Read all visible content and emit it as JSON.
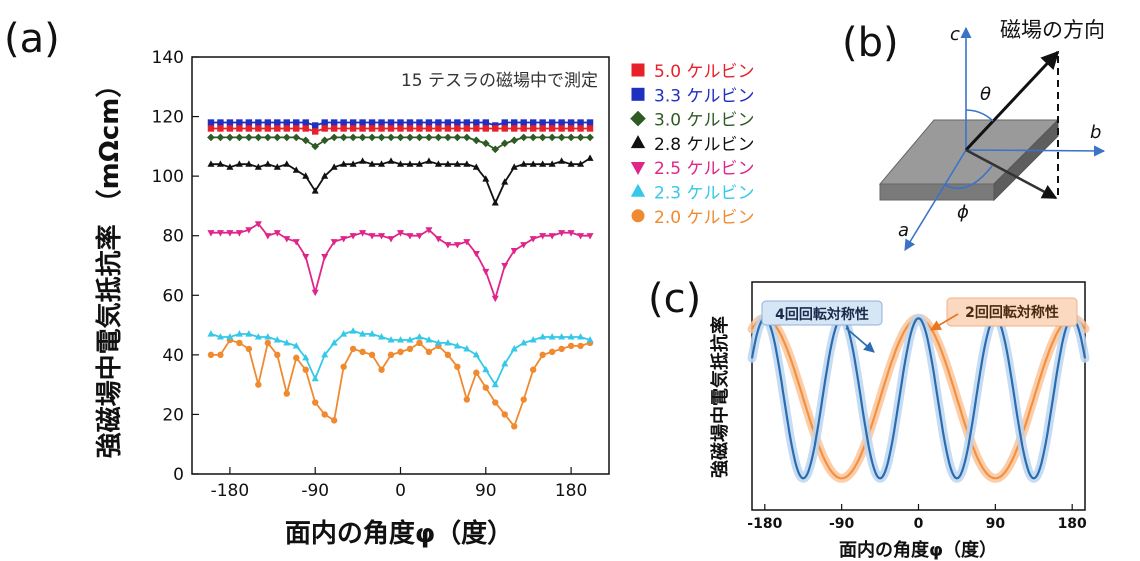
{
  "panels": {
    "a": {
      "label": "(a)"
    },
    "b": {
      "label": "(b)"
    },
    "c": {
      "label": "(c)"
    }
  },
  "chart_data": [
    {
      "type": "line",
      "panel": "a",
      "annotation": "15 テスラの磁場中で測定",
      "xlabel": "面内の角度φ（度）",
      "ylabel": "強磁場中電気抵抗率 （mΩcm）",
      "xlim": [
        -220,
        220
      ],
      "ylim": [
        0,
        140
      ],
      "xticks": [
        "-180",
        "-90",
        "0",
        "90",
        "180"
      ],
      "yticks": [
        "0",
        "20",
        "40",
        "60",
        "80",
        "100",
        "120",
        "140"
      ],
      "grid": false,
      "legend_position": "right, outside plot",
      "series": [
        {
          "name": "5.0 ケルビン",
          "color": "#e8202a",
          "marker": "square",
          "x": [
            -200,
            -190,
            -180,
            -170,
            -160,
            -150,
            -140,
            -130,
            -120,
            -110,
            -100,
            -90,
            -80,
            -70,
            -60,
            -50,
            -40,
            -30,
            -20,
            -10,
            0,
            10,
            20,
            30,
            40,
            50,
            60,
            70,
            80,
            90,
            100,
            110,
            120,
            130,
            140,
            150,
            160,
            170,
            180,
            190,
            200
          ],
          "y": [
            116,
            116,
            116,
            116,
            116,
            116,
            116,
            116,
            116,
            116,
            116,
            115,
            116,
            116,
            116,
            116,
            116,
            116,
            116,
            116,
            116,
            116,
            116,
            116,
            116,
            116,
            116,
            116,
            116,
            116,
            116,
            116,
            116,
            116,
            116,
            116,
            116,
            116,
            116,
            116,
            116
          ]
        },
        {
          "name": "3.3 ケルビン",
          "color": "#1f2fbf",
          "marker": "square",
          "x": [
            -200,
            -190,
            -180,
            -170,
            -160,
            -150,
            -140,
            -130,
            -120,
            -110,
            -100,
            -90,
            -80,
            -70,
            -60,
            -50,
            -40,
            -30,
            -20,
            -10,
            0,
            10,
            20,
            30,
            40,
            50,
            60,
            70,
            80,
            90,
            100,
            110,
            120,
            130,
            140,
            150,
            160,
            170,
            180,
            190,
            200
          ],
          "y": [
            118,
            118,
            118,
            118,
            118,
            118,
            118,
            118,
            118,
            118,
            118,
            117,
            118,
            118,
            118,
            118,
            118,
            118,
            118,
            118,
            118,
            118,
            118,
            118,
            118,
            118,
            118,
            118,
            118,
            118,
            117,
            118,
            118,
            118,
            118,
            118,
            118,
            118,
            118,
            118,
            118
          ]
        },
        {
          "name": "3.0 ケルビン",
          "color": "#2f5a24",
          "marker": "diamond",
          "x": [
            -200,
            -190,
            -180,
            -170,
            -160,
            -150,
            -140,
            -130,
            -120,
            -110,
            -100,
            -90,
            -80,
            -70,
            -60,
            -50,
            -40,
            -30,
            -20,
            -10,
            0,
            10,
            20,
            30,
            40,
            50,
            60,
            70,
            80,
            90,
            100,
            110,
            120,
            130,
            140,
            150,
            160,
            170,
            180,
            190,
            200
          ],
          "y": [
            113,
            113,
            113,
            113,
            113,
            113,
            113,
            113,
            113,
            113,
            112,
            110,
            112,
            113,
            113,
            113,
            113,
            113,
            113,
            113,
            113,
            113,
            113,
            113,
            113,
            113,
            113,
            113,
            112,
            111,
            109,
            111,
            112,
            113,
            113,
            113,
            113,
            113,
            113,
            113,
            113
          ]
        },
        {
          "name": "2.8 ケルビン",
          "color": "#111111",
          "marker": "triangle-up",
          "x": [
            -200,
            -190,
            -180,
            -170,
            -160,
            -150,
            -140,
            -130,
            -120,
            -110,
            -100,
            -90,
            -80,
            -70,
            -60,
            -50,
            -40,
            -30,
            -20,
            -10,
            0,
            10,
            20,
            30,
            40,
            50,
            60,
            70,
            80,
            90,
            100,
            110,
            120,
            130,
            140,
            150,
            160,
            170,
            180,
            190,
            200
          ],
          "y": [
            104,
            104,
            103,
            104,
            104,
            103,
            104,
            103,
            104,
            102,
            100,
            95,
            100,
            103,
            104,
            104,
            105,
            104,
            104,
            105,
            104,
            104,
            104,
            105,
            104,
            104,
            104,
            104,
            103,
            99,
            91,
            98,
            103,
            104,
            104,
            104,
            104,
            105,
            104,
            104,
            106
          ]
        },
        {
          "name": "2.5 ケルビン",
          "color": "#e0248a",
          "marker": "triangle-down",
          "x": [
            -200,
            -190,
            -180,
            -170,
            -160,
            -150,
            -140,
            -130,
            -120,
            -110,
            -100,
            -90,
            -80,
            -70,
            -60,
            -50,
            -40,
            -30,
            -20,
            -10,
            0,
            10,
            20,
            30,
            40,
            50,
            60,
            70,
            80,
            90,
            100,
            110,
            120,
            130,
            140,
            150,
            160,
            170,
            180,
            190,
            200
          ],
          "y": [
            81,
            81,
            81,
            81,
            82,
            84,
            80,
            81,
            79,
            78,
            73,
            61,
            73,
            78,
            79,
            80,
            81,
            80,
            80,
            79,
            81,
            80,
            80,
            82,
            79,
            77,
            77,
            78,
            74,
            68,
            59,
            70,
            75,
            77,
            79,
            80,
            80,
            81,
            81,
            80,
            80
          ]
        },
        {
          "name": "2.3 ケルビン",
          "color": "#35c8e8",
          "marker": "triangle-up",
          "x": [
            -200,
            -190,
            -180,
            -170,
            -160,
            -150,
            -140,
            -130,
            -120,
            -110,
            -100,
            -90,
            -80,
            -70,
            -60,
            -50,
            -40,
            -30,
            -20,
            -10,
            0,
            10,
            20,
            30,
            40,
            50,
            60,
            70,
            80,
            90,
            100,
            110,
            120,
            130,
            140,
            150,
            160,
            170,
            180,
            190,
            200
          ],
          "y": [
            47,
            46,
            46,
            47,
            47,
            46,
            46,
            45,
            44,
            43,
            39,
            32,
            40,
            44,
            47,
            48,
            47,
            47,
            46,
            45,
            45,
            45,
            46,
            45,
            44,
            44,
            43,
            42,
            40,
            35,
            30,
            37,
            42,
            44,
            45,
            46,
            46,
            46,
            46,
            46,
            45
          ]
        },
        {
          "name": "2.0 ケルビン",
          "color": "#f08a30",
          "marker": "circle",
          "x": [
            -200,
            -190,
            -180,
            -170,
            -160,
            -150,
            -140,
            -130,
            -120,
            -110,
            -100,
            -90,
            -80,
            -70,
            -60,
            -50,
            -40,
            -30,
            -20,
            -10,
            0,
            10,
            20,
            30,
            40,
            50,
            60,
            70,
            80,
            90,
            100,
            110,
            120,
            130,
            140,
            150,
            160,
            170,
            180,
            190,
            200
          ],
          "y": [
            40,
            40,
            45,
            44,
            42,
            30,
            44,
            40,
            27,
            39,
            35,
            24,
            20,
            18,
            36,
            42,
            41,
            40,
            35,
            40,
            41,
            42,
            44,
            41,
            43,
            40,
            36,
            25,
            34,
            29,
            24,
            20,
            16,
            25,
            35,
            40,
            41,
            42,
            43,
            43,
            44
          ]
        }
      ]
    },
    {
      "type": "line",
      "panel": "c",
      "xlabel": "面内の角度φ（度）",
      "ylabel": "強磁場中電気抵抗率",
      "xlim": [
        -195,
        195
      ],
      "ylim": [
        0,
        1
      ],
      "xticks": [
        "-180",
        "-90",
        "0",
        "90",
        "180"
      ],
      "grid": false,
      "annotations": [
        "4回回転対称性",
        "2回回転対称性"
      ],
      "series": [
        {
          "label": "4回回転対称性",
          "color": "#2b6cb0",
          "function": "0.5 - 0.45*cos(4*(phi-45))",
          "x": [
            -180,
            -157.5,
            -135,
            -112.5,
            -90,
            -67.5,
            -45,
            -22.5,
            0,
            22.5,
            45,
            67.5,
            90,
            112.5,
            135,
            157.5,
            180
          ],
          "y": [
            0.95,
            0.5,
            0.05,
            0.5,
            0.95,
            0.5,
            0.05,
            0.5,
            0.95,
            0.5,
            0.05,
            0.5,
            0.95,
            0.5,
            0.05,
            0.5,
            0.95
          ]
        },
        {
          "label": "2回回転対称性",
          "color": "#f5913e",
          "function": "0.5 + 0.45*cos(2*phi)",
          "x": [
            -180,
            -135,
            -90,
            -45,
            0,
            45,
            90,
            135,
            180
          ],
          "y": [
            0.95,
            0.5,
            0.05,
            0.5,
            0.95,
            0.5,
            0.05,
            0.5,
            0.95
          ]
        }
      ]
    }
  ],
  "diagram": {
    "axis_c": "c",
    "axis_b": "b",
    "axis_a": "a",
    "theta": "θ",
    "phi": "ϕ",
    "field_label": "磁場の方向"
  }
}
